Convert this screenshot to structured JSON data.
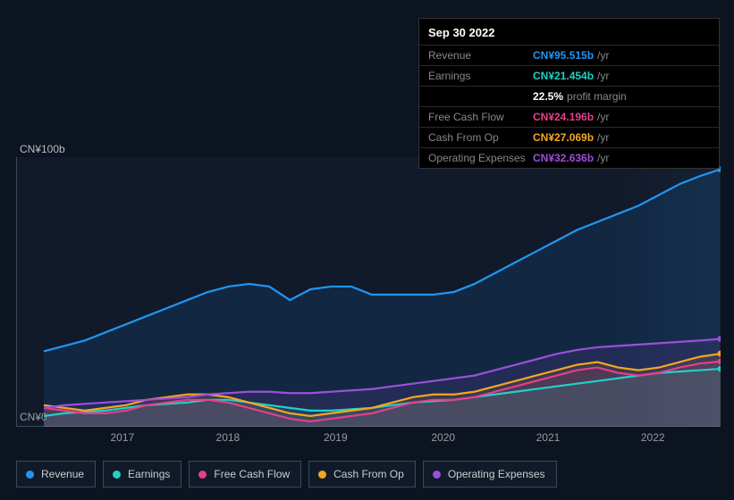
{
  "background_color": "#0d1421",
  "chart": {
    "type": "line-area",
    "y_top_label": "CN¥100b",
    "y_bottom_label": "CN¥0",
    "ylim": [
      0,
      100
    ],
    "plot_gradient": [
      "rgba(30,50,80,0.2)",
      "rgba(30,50,80,0.45)"
    ],
    "x_ticks": [
      "2017",
      "2018",
      "2019",
      "2020",
      "2021",
      "2022"
    ],
    "x_tick_positions": [
      0.151,
      0.301,
      0.454,
      0.607,
      0.756,
      0.905
    ],
    "series": {
      "revenue": {
        "label": "Revenue",
        "color": "#2196f3",
        "values": [
          28,
          30,
          32,
          35,
          38,
          41,
          44,
          47,
          50,
          52,
          53,
          52,
          47,
          51,
          52,
          52,
          49,
          49,
          49,
          49,
          50,
          53,
          57,
          61,
          65,
          69,
          73,
          76,
          79,
          82,
          86,
          90,
          93,
          95.5
        ]
      },
      "earnings": {
        "label": "Earnings",
        "color": "#1fd1c7",
        "values": [
          4,
          5,
          5.5,
          6,
          7,
          8,
          8.5,
          9,
          10,
          10,
          9,
          8,
          7,
          6,
          6,
          6.5,
          7,
          8,
          9,
          9.5,
          10,
          11,
          12,
          13,
          14,
          15,
          16,
          17,
          18,
          19,
          20,
          20.5,
          21,
          21.5
        ]
      },
      "fcf": {
        "label": "Free Cash Flow",
        "color": "#e63e8f",
        "values": [
          7,
          6,
          5,
          5,
          6,
          8,
          9,
          10,
          10,
          9,
          7,
          5,
          3,
          2,
          3,
          4,
          5,
          7,
          9,
          10,
          10,
          11,
          13,
          15,
          17,
          19,
          21,
          22,
          20,
          19,
          20,
          22,
          23.5,
          24.2
        ]
      },
      "cashop": {
        "label": "Cash From Op",
        "color": "#f5a623",
        "values": [
          8,
          7,
          6,
          7,
          8,
          10,
          11,
          12,
          12,
          11,
          9,
          7,
          5,
          4,
          5,
          6,
          7,
          9,
          11,
          12,
          12,
          13,
          15,
          17,
          19,
          21,
          23,
          24,
          22,
          21,
          22,
          24,
          26,
          27.1
        ]
      },
      "opex": {
        "label": "Operating Expenses",
        "color": "#9d4edd",
        "values": [
          7,
          8,
          8.5,
          9,
          9.5,
          10,
          10.5,
          11,
          12,
          12.5,
          13,
          13,
          12.5,
          12.5,
          13,
          13.5,
          14,
          15,
          16,
          17,
          18,
          19,
          21,
          23,
          25,
          27,
          28.5,
          29.5,
          30,
          30.5,
          31,
          31.5,
          32,
          32.6
        ]
      }
    }
  },
  "tooltip": {
    "date": "Sep 30 2022",
    "rows": [
      {
        "label": "Revenue",
        "value": "CN¥95.515b",
        "unit": "/yr",
        "color": "#2196f3"
      },
      {
        "label": "Earnings",
        "value": "CN¥21.454b",
        "unit": "/yr",
        "color": "#1fd1c7"
      },
      {
        "label": "",
        "value": "22.5%",
        "unit": "profit margin",
        "color": "#ffffff"
      },
      {
        "label": "Free Cash Flow",
        "value": "CN¥24.196b",
        "unit": "/yr",
        "color": "#e63e8f"
      },
      {
        "label": "Cash From Op",
        "value": "CN¥27.069b",
        "unit": "/yr",
        "color": "#f5a623"
      },
      {
        "label": "Operating Expenses",
        "value": "CN¥32.636b",
        "unit": "/yr",
        "color": "#9d4edd"
      }
    ]
  },
  "legend": [
    {
      "key": "revenue",
      "label": "Revenue",
      "color": "#2196f3"
    },
    {
      "key": "earnings",
      "label": "Earnings",
      "color": "#1fd1c7"
    },
    {
      "key": "fcf",
      "label": "Free Cash Flow",
      "color": "#e63e8f"
    },
    {
      "key": "cashop",
      "label": "Cash From Op",
      "color": "#f5a623"
    },
    {
      "key": "opex",
      "label": "Operating Expenses",
      "color": "#9d4edd"
    }
  ]
}
